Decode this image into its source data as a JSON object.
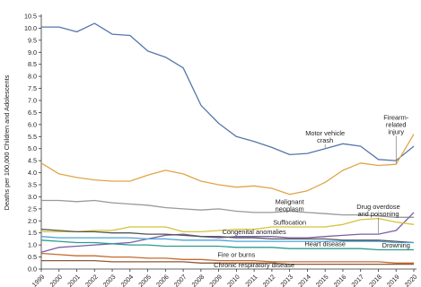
{
  "chart_data": {
    "type": "line",
    "title": "",
    "xlabel": "",
    "ylabel": "Deaths per 100,000 Children and Adolescents",
    "x": [
      "1999",
      "2000",
      "2001",
      "2002",
      "2003",
      "2004",
      "2005",
      "2006",
      "2007",
      "2008",
      "2009",
      "2010",
      "2011",
      "2012",
      "2013",
      "2014",
      "2015",
      "2016",
      "2017",
      "2018",
      "2019",
      "2020"
    ],
    "ylim": [
      0,
      10.5
    ],
    "yticks": [
      "0.0",
      "0.5",
      "1.0",
      "1.5",
      "2.0",
      "2.5",
      "3.0",
      "3.5",
      "4.0",
      "4.5",
      "5.0",
      "5.5",
      "6.0",
      "6.5",
      "7.0",
      "7.5",
      "8.0",
      "8.5",
      "9.0",
      "9.5",
      "10.0",
      "10.5"
    ],
    "grid": false,
    "series": [
      {
        "name": "Motor vehicle crash",
        "color": "#5577aa",
        "values": [
          10.05,
          10.05,
          9.85,
          10.2,
          9.75,
          9.7,
          9.05,
          8.8,
          8.35,
          6.8,
          6.05,
          5.5,
          5.3,
          5.05,
          4.75,
          4.8,
          5.0,
          5.2,
          5.1,
          4.55,
          4.5,
          5.1
        ]
      },
      {
        "name": "Firearm-related injury",
        "color": "#e0a54a",
        "values": [
          4.4,
          3.95,
          3.8,
          3.7,
          3.65,
          3.65,
          3.9,
          4.1,
          3.95,
          3.65,
          3.5,
          3.4,
          3.45,
          3.35,
          3.1,
          3.25,
          3.6,
          4.1,
          4.4,
          4.3,
          4.35,
          5.6
        ]
      },
      {
        "name": "Malignant neoplasm",
        "color": "#999999",
        "values": [
          2.85,
          2.85,
          2.8,
          2.85,
          2.75,
          2.7,
          2.65,
          2.55,
          2.5,
          2.45,
          2.5,
          2.4,
          2.35,
          2.35,
          2.4,
          2.35,
          2.3,
          2.25,
          2.25,
          2.2,
          2.15,
          2.15
        ]
      },
      {
        "name": "Drug overdose and poisoning",
        "color": "#7a5ea8",
        "values": [
          0.7,
          0.9,
          0.95,
          1.0,
          1.05,
          1.1,
          1.25,
          1.4,
          1.45,
          1.35,
          1.3,
          1.35,
          1.35,
          1.35,
          1.3,
          1.3,
          1.35,
          1.4,
          1.45,
          1.45,
          1.6,
          2.35
        ]
      },
      {
        "name": "Suffocation",
        "color": "#d6c23b",
        "values": [
          1.55,
          1.55,
          1.55,
          1.6,
          1.6,
          1.75,
          1.75,
          1.75,
          1.55,
          1.55,
          1.6,
          1.65,
          1.65,
          1.75,
          1.75,
          1.75,
          1.75,
          1.85,
          2.05,
          2.1,
          1.95,
          1.85
        ]
      },
      {
        "name": "Congenital anomalies",
        "color": "#555555",
        "values": [
          1.65,
          1.6,
          1.55,
          1.55,
          1.5,
          1.5,
          1.45,
          1.45,
          1.4,
          1.35,
          1.35,
          1.3,
          1.3,
          1.25,
          1.25,
          1.25,
          1.25,
          1.2,
          1.2,
          1.2,
          1.15,
          1.1
        ]
      },
      {
        "name": "Heart disease",
        "color": "#2a9d8f",
        "values": [
          1.2,
          1.15,
          1.1,
          1.1,
          1.05,
          1.0,
          1.0,
          0.95,
          0.95,
          0.95,
          0.95,
          0.9,
          0.9,
          0.9,
          0.85,
          0.85,
          0.85,
          0.85,
          0.85,
          0.8,
          0.8,
          0.8
        ]
      },
      {
        "name": "Drowning",
        "color": "#4aa3d6",
        "values": [
          1.35,
          1.3,
          1.3,
          1.3,
          1.3,
          1.3,
          1.25,
          1.25,
          1.2,
          1.2,
          1.2,
          1.15,
          1.15,
          1.15,
          1.15,
          1.15,
          1.15,
          1.15,
          1.15,
          1.15,
          1.1,
          1.1
        ]
      },
      {
        "name": "Fire or burns",
        "color": "#c46a2f",
        "values": [
          0.65,
          0.6,
          0.55,
          0.55,
          0.5,
          0.5,
          0.45,
          0.45,
          0.4,
          0.4,
          0.35,
          0.35,
          0.35,
          0.3,
          0.3,
          0.3,
          0.3,
          0.3,
          0.3,
          0.3,
          0.25,
          0.25
        ]
      },
      {
        "name": "Chronic respiratory disease",
        "color": "#8a5a3a",
        "values": [
          0.35,
          0.35,
          0.35,
          0.35,
          0.3,
          0.3,
          0.3,
          0.3,
          0.3,
          0.25,
          0.25,
          0.25,
          0.25,
          0.25,
          0.2,
          0.2,
          0.2,
          0.2,
          0.2,
          0.2,
          0.2,
          0.2
        ]
      }
    ],
    "annotations": [
      {
        "series": "Motor vehicle crash",
        "lines": [
          "Motor vehicle",
          "crash"
        ],
        "at_x": "2015",
        "label_y": 5.55
      },
      {
        "series": "Firearm-related injury",
        "lines": [
          "Firearm-",
          "related",
          "injury"
        ],
        "at_x": "2019",
        "label_y": 6.2
      },
      {
        "series": "Malignant neoplasm",
        "lines": [
          "Malignant",
          "neoplasm"
        ],
        "at_x": "2013",
        "label_y": 2.7
      },
      {
        "series": "Drug overdose and poisoning",
        "lines": [
          "Drug overdose",
          "and poisoning"
        ],
        "at_x": "2018",
        "label_y": 2.5
      },
      {
        "series": "Suffocation",
        "lines": [
          "Suffocation"
        ],
        "at_x": "2013",
        "label_y": 1.85
      },
      {
        "series": "Congenital anomalies",
        "lines": [
          "Congenital anomalies"
        ],
        "at_x": "2011",
        "label_y": 1.45
      },
      {
        "series": "Heart disease",
        "lines": [
          "Heart disease"
        ],
        "at_x": "2015",
        "label_y": 0.95
      },
      {
        "series": "Drowning",
        "lines": [
          "Drowning"
        ],
        "at_x": "2019",
        "label_y": 0.9
      },
      {
        "series": "Fire or burns",
        "lines": [
          "Fire or burns"
        ],
        "at_x": "2010",
        "label_y": 0.5
      },
      {
        "series": "Chronic respiratory disease",
        "lines": [
          "Chronic respiratory disease"
        ],
        "at_x": "2011",
        "label_y": 0.08
      }
    ]
  }
}
